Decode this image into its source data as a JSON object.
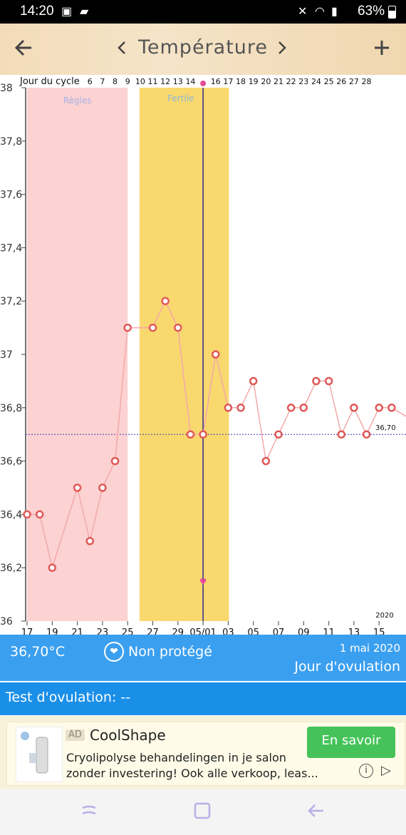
{
  "status_bar": {
    "time": "14:20",
    "battery": "63%"
  },
  "app_bar": {
    "title": "Température",
    "back_icon": "arrow-left-icon",
    "prev_icon": "chevron-left-icon",
    "next_icon": "chevron-right-icon",
    "add_icon": "plus-icon"
  },
  "chart_data": {
    "type": "line",
    "cycle_label": "Jour du cycle",
    "cycle_days": [
      "6",
      "7",
      "8",
      "9",
      "10",
      "11",
      "12",
      "13",
      "14",
      "16",
      "17",
      "18",
      "19",
      "20",
      "21",
      "22",
      "23",
      "24",
      "25",
      "26",
      "27",
      "28"
    ],
    "x_ticks": [
      "17",
      "19",
      "21",
      "23",
      "25",
      "27",
      "29",
      "05/01",
      "03",
      "05",
      "07",
      "09",
      "11",
      "13",
      "15"
    ],
    "y_ticks": [
      "36",
      "36,2",
      "36,4",
      "36,6",
      "36,8",
      "37",
      "37,2",
      "37,4",
      "37,6",
      "37,8",
      "38"
    ],
    "ylim": [
      36,
      38
    ],
    "series": [
      {
        "values": [
          36.4,
          36.4,
          36.2,
          null,
          36.5,
          36.3,
          36.5,
          36.6,
          37.1,
          null,
          37.1,
          37.2,
          37.1,
          36.7,
          36.7,
          37.0,
          36.8,
          36.8,
          36.9,
          36.6,
          36.7,
          36.8,
          36.8,
          36.9,
          36.9,
          36.7,
          36.8,
          36.7,
          36.8,
          36.8
        ]
      }
    ],
    "coverline": {
      "value": 36.7,
      "label": "36,70"
    },
    "regions": [
      {
        "label": "Règles",
        "color": "#fcd2d2"
      },
      {
        "label": "Fertile",
        "color": "#f9d86e"
      }
    ],
    "year_label": "2020",
    "colors": {
      "line": "#f4a9a9",
      "marker": "#e05858",
      "coverline": "#3d3fb0",
      "ovulation": "#2a2a8a"
    }
  },
  "info_bar": {
    "temperature": "36,70°C",
    "protection": "Non protégé",
    "date": "1 mai 2020",
    "day_type": "Jour d'ovulation",
    "heart_icon": "heart-icon"
  },
  "test_bar": {
    "label": "Test d'ovulation: --"
  },
  "ad": {
    "badge": "AD",
    "brand": "CoolShape",
    "line1": "Cryolipolyse behandelingen in je salon",
    "line2": "zonder investering! Ook alle verkoop, leas...",
    "cta": "En savoir"
  },
  "nav": {
    "recent_icon": "recent-apps-icon",
    "home_icon": "home-icon",
    "back_icon": "back-arrow-icon"
  }
}
